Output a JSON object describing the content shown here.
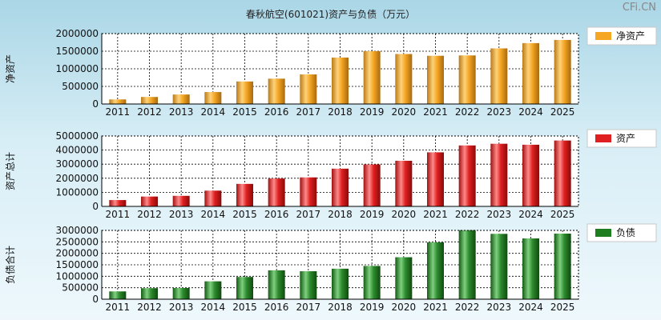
{
  "title": "春秋航空(601021)资产与负债（万元）",
  "watermark": "CFi.CN",
  "chart_data": [
    {
      "type": "bar",
      "ylabel": "净资产",
      "legend": "净资产",
      "legend_position": "right",
      "color": "#f5a623",
      "categories": [
        "2011",
        "2012",
        "2013",
        "2014",
        "2015",
        "2016",
        "2017",
        "2018",
        "2019",
        "2020",
        "2021",
        "2022",
        "2023",
        "2024",
        "2025"
      ],
      "values": [
        130000,
        200000,
        270000,
        340000,
        640000,
        720000,
        840000,
        1320000,
        1500000,
        1420000,
        1370000,
        1380000,
        1580000,
        1730000,
        1820000
      ],
      "ylim": [
        0,
        2000000
      ],
      "yticks": [
        "0",
        "500000",
        "1000000",
        "1500000",
        "2000000"
      ],
      "grid": true
    },
    {
      "type": "bar",
      "ylabel": "资产总计",
      "legend": "资产",
      "legend_position": "right",
      "color": "#e02020",
      "categories": [
        "2011",
        "2012",
        "2013",
        "2014",
        "2015",
        "2016",
        "2017",
        "2018",
        "2019",
        "2020",
        "2021",
        "2022",
        "2023",
        "2024",
        "2025"
      ],
      "values": [
        450000,
        700000,
        750000,
        1120000,
        1600000,
        1980000,
        2060000,
        2680000,
        2980000,
        3240000,
        3840000,
        4330000,
        4450000,
        4380000,
        4680000
      ],
      "ylim": [
        0,
        5000000
      ],
      "yticks": [
        "0",
        "1000000",
        "2000000",
        "3000000",
        "4000000",
        "5000000"
      ],
      "grid": true
    },
    {
      "type": "bar",
      "ylabel": "负债合计",
      "legend": "负债",
      "legend_position": "right",
      "color": "#1e7d1e",
      "categories": [
        "2011",
        "2012",
        "2013",
        "2014",
        "2015",
        "2016",
        "2017",
        "2018",
        "2019",
        "2020",
        "2021",
        "2022",
        "2023",
        "2024",
        "2025"
      ],
      "values": [
        340000,
        480000,
        490000,
        780000,
        970000,
        1260000,
        1220000,
        1330000,
        1450000,
        1830000,
        2480000,
        3010000,
        2850000,
        2650000,
        2860000
      ],
      "ylim": [
        0,
        3000000
      ],
      "yticks": [
        "0",
        "500000",
        "1000000",
        "1500000",
        "2000000",
        "2500000",
        "3000000"
      ],
      "grid": true
    }
  ]
}
